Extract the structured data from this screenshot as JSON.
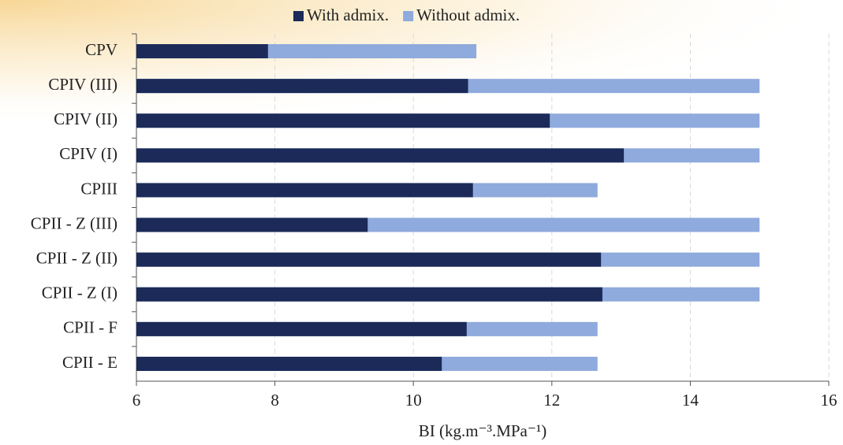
{
  "chart_data": {
    "type": "bar",
    "orientation": "horizontal",
    "overlap": true,
    "categories": [
      "CPV",
      "CPIV (III)",
      "CPIV (II)",
      "CPIV (I)",
      "CPIII",
      "CPII - Z (III)",
      "CPII - Z (II)",
      "CPII - Z (I)",
      "CPII - F",
      "CPII - E"
    ],
    "series": [
      {
        "name": "Without admix.",
        "color": "#8faadc",
        "values": [
          10.91,
          15.0,
          15.0,
          15.0,
          12.66,
          15.0,
          15.0,
          15.0,
          12.66,
          12.66
        ]
      },
      {
        "name": "With admix.",
        "color": "#1b2a58",
        "values": [
          7.9,
          10.79,
          11.97,
          13.04,
          10.86,
          9.34,
          12.71,
          12.73,
          10.77,
          10.41
        ]
      }
    ],
    "legend_order": [
      "With admix.",
      "Without admix."
    ],
    "xlabel": "BI (kg.m⁻³.MPa⁻¹)",
    "xlim": [
      6,
      16
    ],
    "xticks": [
      6,
      8,
      10,
      12,
      14,
      16
    ],
    "grid": true,
    "legend": "top"
  }
}
